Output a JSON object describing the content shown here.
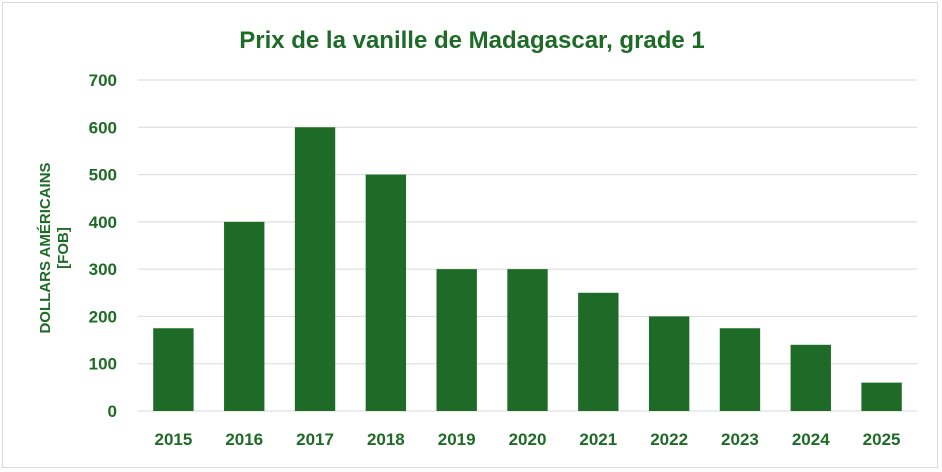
{
  "colors": {
    "bar": "#1e6b27",
    "text": "#1e6b27",
    "grid": "#d9d9d9",
    "border": "#d9d9d9"
  },
  "chart_data": {
    "type": "bar",
    "title": "Prix de la vanille de Madagascar, grade 1",
    "xlabel": "",
    "ylabel_lines": [
      "DOLLARS AMÉRICAINS",
      "[FOB]"
    ],
    "categories": [
      "2015",
      "2016",
      "2017",
      "2018",
      "2019",
      "2020",
      "2021",
      "2022",
      "2023",
      "2024",
      "2025"
    ],
    "values": [
      175,
      400,
      600,
      500,
      300,
      300,
      250,
      200,
      175,
      140,
      60
    ],
    "ylim": [
      0,
      700
    ],
    "yticks": [
      0,
      100,
      200,
      300,
      400,
      500,
      600,
      700
    ],
    "grid": true,
    "legend": "none"
  }
}
